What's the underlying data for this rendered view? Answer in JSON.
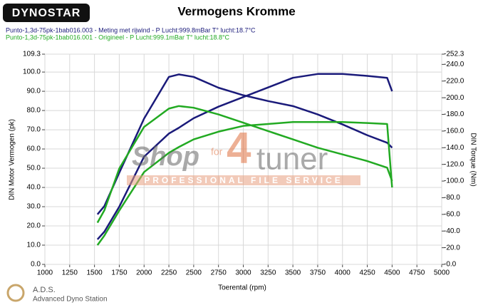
{
  "logo": "DYNOSTAR",
  "footer": {
    "title": "A.D.S.",
    "subtitle": "Advanced Dyno Station"
  },
  "watermark": {
    "brand_left": "Shop",
    "brand_mid": "for",
    "brand_num": "4",
    "brand_right": "tuner",
    "tagline": "PROFESSIONAL FILE SERVICE"
  },
  "chart_data": {
    "type": "line",
    "title": "Vermogens Kromme",
    "x_label": "Toerental (rpm)",
    "y_label": "DIN Motor Vermogen (pk)",
    "y2_label": "DIN Torque (Nm)",
    "x": [
      1530,
      1600,
      1750,
      2000,
      2250,
      2350,
      2500,
      2750,
      3000,
      3250,
      3500,
      3750,
      4000,
      4250,
      4450,
      4500
    ],
    "series": [
      {
        "name": "Punto-1,3d-75pk-1bab016.003 - Meting met rijwind  - P Lucht:999.8mBar T° lucht:18.7°C",
        "color": "#1a1a7a",
        "values": [
          13,
          17,
          30,
          56,
          68,
          71,
          76,
          82,
          87,
          92,
          97,
          99,
          99,
          98,
          97,
          90
        ],
        "torque_values": [
          60,
          70,
          110,
          175,
          225,
          228,
          225,
          212,
          203,
          196,
          190,
          180,
          168,
          155,
          146,
          140
        ]
      },
      {
        "name": "Punto-1,3d-75pk-1bab016.001 - Origineel  - P Lucht:999.1mBar T° lucht:18.8°C",
        "color": "#22aa22",
        "values": [
          10,
          15,
          28,
          48,
          58,
          61,
          65,
          69,
          72,
          73,
          74,
          74,
          74,
          73.5,
          73,
          40
        ],
        "torque_values": [
          50,
          65,
          115,
          165,
          187,
          190,
          188,
          180,
          170,
          160,
          150,
          140,
          132,
          124,
          116,
          100
        ]
      }
    ],
    "xlim": [
      1000,
      5000
    ],
    "xticks": [
      1000,
      1250,
      1500,
      1750,
      2000,
      2250,
      2500,
      2750,
      3000,
      3250,
      3500,
      3750,
      4000,
      4250,
      4500,
      4750,
      5000
    ],
    "ylim": [
      0,
      109.3
    ],
    "yticks": [
      {
        "value": 0,
        "label": "0.0"
      },
      {
        "value": 10,
        "label": "10.0"
      },
      {
        "value": 20,
        "label": "20.0"
      },
      {
        "value": 30,
        "label": "30.0"
      },
      {
        "value": 40,
        "label": "40.0"
      },
      {
        "value": 50,
        "label": "50.0"
      },
      {
        "value": 60,
        "label": "60.0"
      },
      {
        "value": 70,
        "label": "70.0"
      },
      {
        "value": 80,
        "label": "80.0"
      },
      {
        "value": 90,
        "label": "90.0"
      },
      {
        "value": 100,
        "label": "100.0"
      },
      109.3
    ],
    "y2lim": [
      0,
      252.3
    ],
    "y2ticks": [
      {
        "value": 0,
        "label": "-0.0"
      },
      {
        "value": 20,
        "label": "-20.0"
      },
      {
        "value": 40,
        "label": "-40.0"
      },
      {
        "value": 60,
        "label": "-60.0"
      },
      {
        "value": 80,
        "label": "-80.0"
      },
      {
        "value": 100,
        "label": "-100.0"
      },
      {
        "value": 120,
        "label": "-120.0"
      },
      {
        "value": 140,
        "label": "-140.0"
      },
      {
        "value": 160,
        "label": "-160.0"
      },
      {
        "value": 180,
        "label": "-180.0"
      },
      {
        "value": 200,
        "label": "-200.0"
      },
      {
        "value": 220,
        "label": "-220.0"
      },
      {
        "value": 240,
        "label": "-240.0"
      },
      {
        "value": 252.3,
        "label": "-252.3"
      }
    ],
    "grid": true
  }
}
